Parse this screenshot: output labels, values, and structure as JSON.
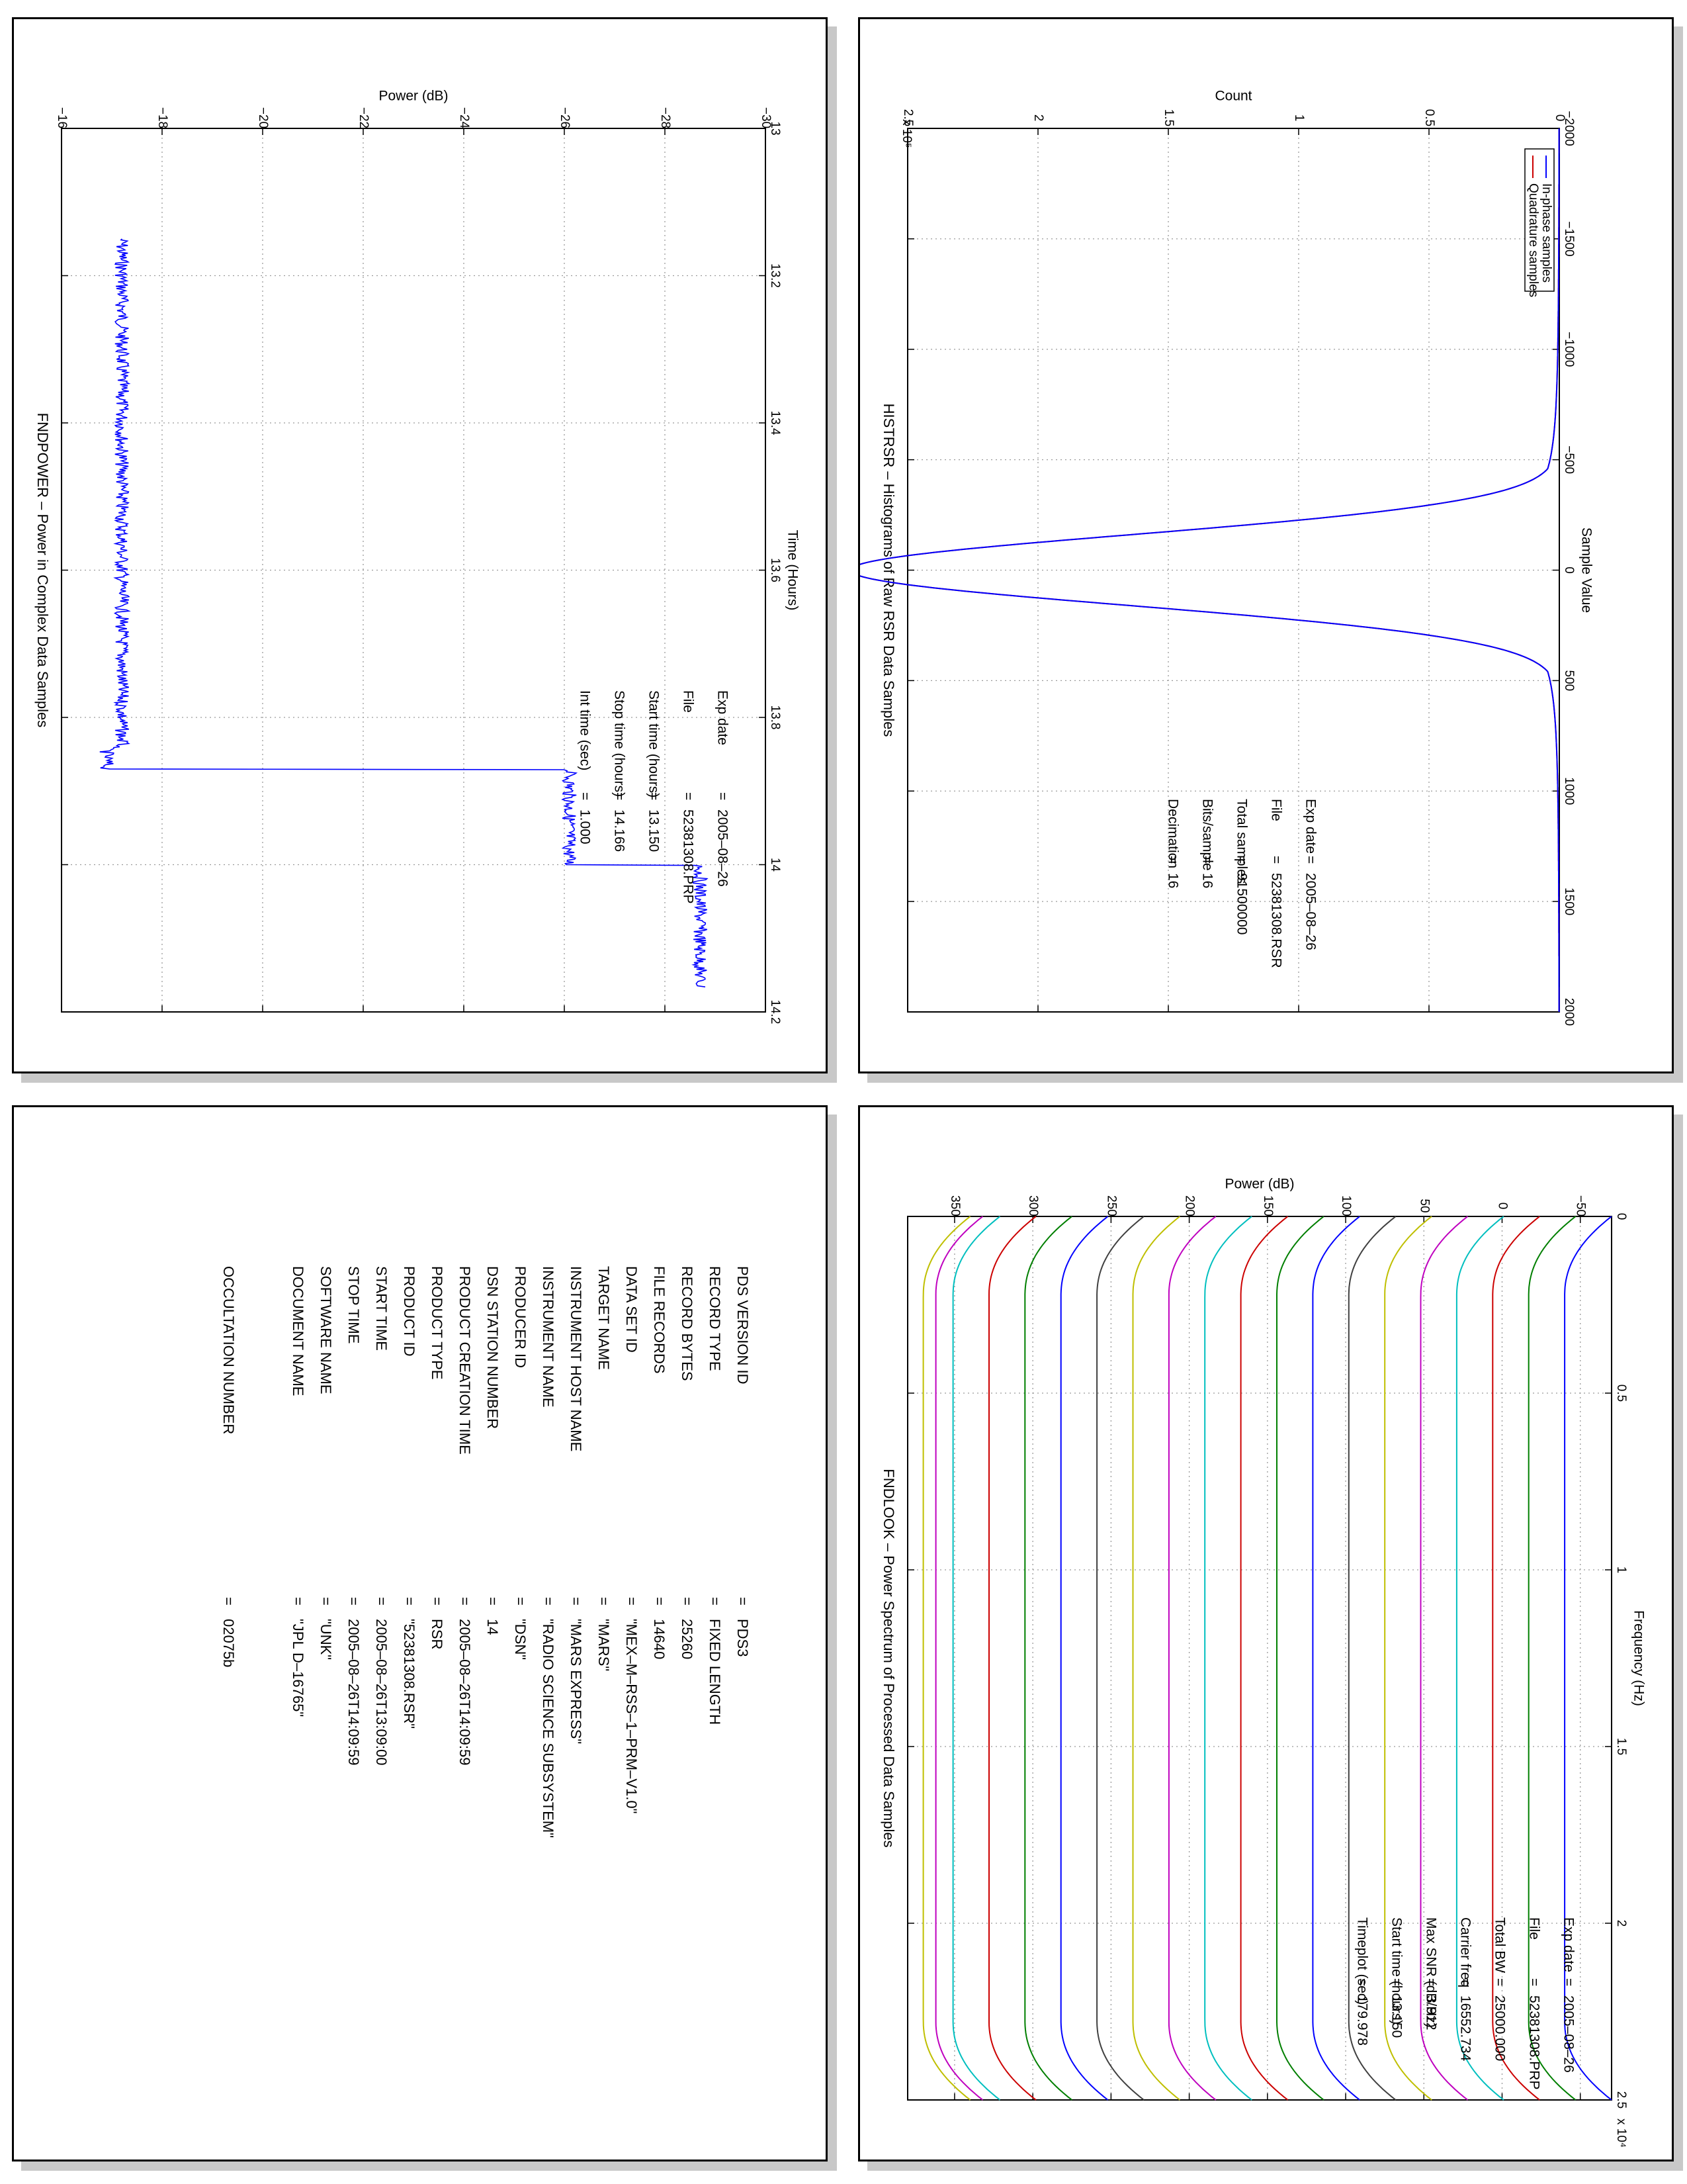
{
  "chart_data": [
    {
      "id": "histrsr",
      "type": "line",
      "title": "HISTRSR – Histograms of Raw RSR Data Samples",
      "xlabel": "Sample Value",
      "ylabel": "Count",
      "y_multiplier": "x 10⁵",
      "xlim": [
        -2000,
        2000
      ],
      "ylim": [
        0,
        2.5
      ],
      "xticks": [
        -2000,
        -1500,
        -1000,
        -500,
        0,
        500,
        1000,
        1500,
        2000
      ],
      "yticks": [
        0,
        0.5,
        1,
        1.5,
        2,
        2.5
      ],
      "tick_labels_x": [
        "−2000",
        "−1500",
        "−1000",
        "−500",
        "0",
        "500",
        "1000",
        "1500",
        "2000"
      ],
      "tick_labels_y": [
        "0",
        "0.5",
        "1",
        "1.5",
        "2",
        "2.5"
      ],
      "grid": true,
      "legend": "top-right",
      "series": [
        {
          "name": "In-phase samples",
          "color": "#0000ff",
          "x": [
            -2000,
            -700,
            -500,
            -400,
            -300,
            -200,
            -150,
            -100,
            -50,
            0,
            50,
            100,
            150,
            200,
            300,
            400,
            500,
            700,
            2000
          ],
          "y": [
            0,
            0.002,
            0.02,
            0.06,
            0.18,
            0.45,
            0.75,
            1.2,
            2.1,
            2.72,
            2.1,
            1.2,
            0.75,
            0.45,
            0.18,
            0.06,
            0.02,
            0.002,
            0
          ]
        },
        {
          "name": "Quadrature samples",
          "color": "#cc0000",
          "x": [
            -2000,
            -700,
            -500,
            -400,
            -300,
            -200,
            -150,
            -100,
            -50,
            0,
            50,
            100,
            150,
            200,
            300,
            400,
            500,
            700,
            2000
          ],
          "y": [
            0,
            0.002,
            0.02,
            0.06,
            0.18,
            0.45,
            0.75,
            1.2,
            2.1,
            2.72,
            2.1,
            1.2,
            0.75,
            0.45,
            0.18,
            0.06,
            0.02,
            0.002,
            0
          ]
        }
      ],
      "annotations": [
        {
          "label": "Exp date",
          "value": "2005–08–26"
        },
        {
          "label": "File",
          "value": "52381308.RSR"
        },
        {
          "label": "Total samples",
          "value": "91500000"
        },
        {
          "label": "Bits/sample",
          "value": "16"
        },
        {
          "label": "Decimation",
          "value": "16"
        }
      ]
    },
    {
      "id": "fndpower",
      "type": "line",
      "title": "FNDPOWER – Power in Complex Data Samples",
      "xlabel": "Time (Hours)",
      "ylabel": "Power (dB)",
      "xlim": [
        13,
        14.2
      ],
      "ylim": [
        -30,
        -16
      ],
      "xticks": [
        13,
        13.2,
        13.4,
        13.6,
        13.8,
        14,
        14.2
      ],
      "yticks": [
        -30,
        -28,
        -26,
        -24,
        -22,
        -20,
        -18,
        -16
      ],
      "tick_labels_x": [
        "13",
        "13.2",
        "13.4",
        "13.6",
        "13.8",
        "14",
        "14.2"
      ],
      "tick_labels_y": [
        "−30",
        "−28",
        "−26",
        "−24",
        "−22",
        "−20",
        "−18",
        "−16"
      ],
      "grid": true,
      "series": [
        {
          "name": "",
          "color": "#0000ff",
          "x": [
            13.15,
            13.84,
            13.841,
            13.87,
            13.871,
            14.0,
            14.001,
            14.166
          ],
          "y": [
            -17.2,
            -17.2,
            -16.9,
            -16.9,
            -26.1,
            -26.1,
            -28.7,
            -28.7
          ]
        }
      ],
      "annotations": [
        {
          "label": "Exp date",
          "value": "2005–08–26"
        },
        {
          "label": "File",
          "value": "52381308.PRP"
        },
        {
          "label": "Start time (hours)",
          "value": "13.150"
        },
        {
          "label": "Stop time (hours)",
          "value": "14.166"
        },
        {
          "label": "Int time (sec)",
          "value": "1.000"
        }
      ]
    },
    {
      "id": "fndlook",
      "type": "line",
      "title": "FNDLOOK – Power Spectrum of Processed Data Samples",
      "xlabel": "Frequency (Hz)",
      "ylabel": "Power (dB)",
      "x_multiplier": "x 10⁴",
      "xlim": [
        0,
        2.5
      ],
      "ylim": [
        -70,
        380
      ],
      "xticks": [
        0,
        0.5,
        1,
        1.5,
        2,
        2.5
      ],
      "yticks": [
        -50,
        0,
        50,
        100,
        150,
        200,
        250,
        300,
        350
      ],
      "tick_labels_x": [
        "0",
        "0.5",
        "1",
        "1.5",
        "2",
        "2.5"
      ],
      "tick_labels_y": [
        "−50",
        "0",
        "50",
        "100",
        "150",
        "200",
        "250",
        "300",
        "350"
      ],
      "grid": true,
      "series": [
        {
          "name": "",
          "color": "#0000ff",
          "flat": -40
        },
        {
          "name": "",
          "color": "#007f00",
          "flat": -17
        },
        {
          "name": "",
          "color": "#cc0000",
          "flat": 6
        },
        {
          "name": "",
          "color": "#00bfbf",
          "flat": 29
        },
        {
          "name": "",
          "color": "#bf00bf",
          "flat": 52
        },
        {
          "name": "",
          "color": "#bfbf00",
          "flat": 75
        },
        {
          "name": "",
          "color": "#404040",
          "flat": 98
        },
        {
          "name": "",
          "color": "#0000ff",
          "flat": 121
        },
        {
          "name": "",
          "color": "#007f00",
          "flat": 144
        },
        {
          "name": "",
          "color": "#cc0000",
          "flat": 167
        },
        {
          "name": "",
          "color": "#00bfbf",
          "flat": 190
        },
        {
          "name": "",
          "color": "#bf00bf",
          "flat": 213
        },
        {
          "name": "",
          "color": "#bfbf00",
          "flat": 236
        },
        {
          "name": "",
          "color": "#404040",
          "flat": 259
        },
        {
          "name": "",
          "color": "#0000ff",
          "flat": 282
        },
        {
          "name": "",
          "color": "#007f00",
          "flat": 305
        },
        {
          "name": "",
          "color": "#cc0000",
          "flat": 328
        },
        {
          "name": "",
          "color": "#00bfbf",
          "flat": 351
        },
        {
          "name": "",
          "color": "#bf00bf",
          "flat": 362
        },
        {
          "name": "",
          "color": "#bfbf00",
          "flat": 370
        }
      ],
      "annotations": [
        {
          "label": "Exp date",
          "value": "2005–08–26"
        },
        {
          "label": "File",
          "value": "52381308.PRP"
        },
        {
          "label": "Total BW",
          "value": "25000.000"
        },
        {
          "label": "Carrier freq",
          "value": "16552.734"
        },
        {
          "label": "Max SNR (dB/Hz)",
          "value": "3.912"
        },
        {
          "label": "Start time (hours)",
          "value": "13.150"
        },
        {
          "label": "Timeplot (sec)",
          "value": "179.978"
        }
      ]
    }
  ],
  "metadata": {
    "rows": [
      {
        "key": "PDS VERSION ID",
        "value": "PDS3"
      },
      {
        "key": "RECORD TYPE",
        "value": "FIXED LENGTH"
      },
      {
        "key": "RECORD BYTES",
        "value": "25260"
      },
      {
        "key": "FILE RECORDS",
        "value": "14640"
      },
      {
        "key": "DATA SET ID",
        "value": "\"MEX–M–RSS–1–PRM–V1.0\""
      },
      {
        "key": "TARGET NAME",
        "value": "\"MARS\""
      },
      {
        "key": "INSTRUMENT HOST NAME",
        "value": "\"MARS EXPRESS\""
      },
      {
        "key": "INSTRUMENT NAME",
        "value": "\"RADIO SCIENCE SUBSYSTEM\""
      },
      {
        "key": "PRODUCER ID",
        "value": "\"DSN\""
      },
      {
        "key": "DSN STATION NUMBER",
        "value": "14"
      },
      {
        "key": "PRODUCT CREATION TIME",
        "value": "2005–08–26T14:09:59"
      },
      {
        "key": "PRODUCT TYPE",
        "value": "RSR"
      },
      {
        "key": "PRODUCT ID",
        "value": "\"52381308.RSR\""
      },
      {
        "key": "START TIME",
        "value": "2005–08–26T13:09:00"
      },
      {
        "key": "STOP TIME",
        "value": "2005–08–26T14:09:59"
      },
      {
        "key": "SOFTWARE NAME",
        "value": "\"UNK\""
      },
      {
        "key": "DOCUMENT NAME",
        "value": "\"JPL D–16765\""
      }
    ],
    "occultation": {
      "key": "OCCULTATION NUMBER",
      "value": "02075b"
    }
  }
}
